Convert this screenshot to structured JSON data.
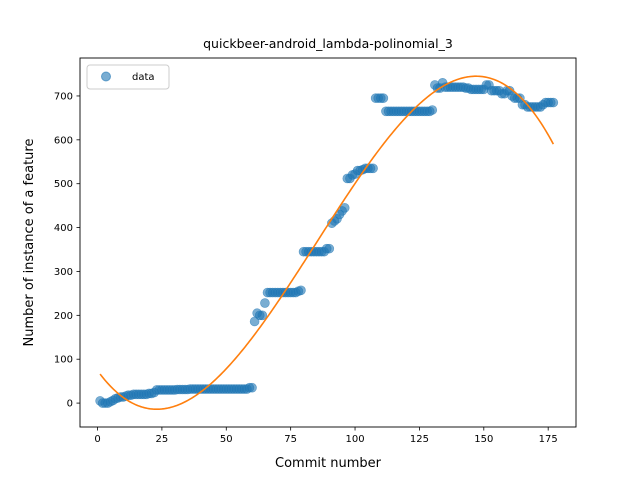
{
  "chart_data": {
    "type": "scatter",
    "title": "quickbeer-android_lambda-polinomial_3",
    "xlabel": "Commit number",
    "ylabel": "Number of instance of a feature",
    "xlim": [
      -6.8,
      185.8
    ],
    "ylim": [
      -54.5,
      786.5
    ],
    "xticks": [
      0,
      25,
      50,
      75,
      100,
      125,
      150,
      175
    ],
    "yticks": [
      0,
      100,
      200,
      300,
      400,
      500,
      600,
      700
    ],
    "grid": false,
    "legend": {
      "position": "top-left",
      "entries": [
        "data"
      ]
    },
    "colors": {
      "data": "#1f77b4",
      "fit": "#ff7f0e"
    },
    "series": [
      {
        "name": "data",
        "kind": "scatter",
        "points": [
          [
            1,
            5
          ],
          [
            2,
            0
          ],
          [
            3,
            0
          ],
          [
            4,
            0
          ],
          [
            5,
            3
          ],
          [
            6,
            6
          ],
          [
            7,
            10
          ],
          [
            8,
            12
          ],
          [
            9,
            14
          ],
          [
            10,
            14
          ],
          [
            11,
            16
          ],
          [
            12,
            18
          ],
          [
            13,
            18
          ],
          [
            14,
            20
          ],
          [
            15,
            20
          ],
          [
            16,
            20
          ],
          [
            17,
            20
          ],
          [
            18,
            20
          ],
          [
            19,
            20
          ],
          [
            20,
            22
          ],
          [
            21,
            22
          ],
          [
            22,
            24
          ],
          [
            23,
            30
          ],
          [
            24,
            30
          ],
          [
            25,
            30
          ],
          [
            26,
            30
          ],
          [
            27,
            30
          ],
          [
            28,
            30
          ],
          [
            29,
            30
          ],
          [
            30,
            30
          ],
          [
            31,
            31
          ],
          [
            32,
            31
          ],
          [
            33,
            31
          ],
          [
            34,
            31
          ],
          [
            35,
            31
          ],
          [
            36,
            32
          ],
          [
            37,
            32
          ],
          [
            38,
            32
          ],
          [
            39,
            32
          ],
          [
            40,
            32
          ],
          [
            41,
            32
          ],
          [
            42,
            32
          ],
          [
            43,
            32
          ],
          [
            44,
            32
          ],
          [
            45,
            32
          ],
          [
            46,
            32
          ],
          [
            47,
            32
          ],
          [
            48,
            32
          ],
          [
            49,
            32
          ],
          [
            50,
            32
          ],
          [
            51,
            32
          ],
          [
            52,
            32
          ],
          [
            53,
            32
          ],
          [
            54,
            32
          ],
          [
            55,
            32
          ],
          [
            56,
            32
          ],
          [
            57,
            32
          ],
          [
            58,
            32
          ],
          [
            59,
            35
          ],
          [
            60,
            35
          ],
          [
            61,
            186
          ],
          [
            62,
            205
          ],
          [
            63,
            200
          ],
          [
            64,
            200
          ],
          [
            65,
            228
          ],
          [
            66,
            252
          ],
          [
            67,
            252
          ],
          [
            68,
            252
          ],
          [
            69,
            252
          ],
          [
            70,
            252
          ],
          [
            71,
            252
          ],
          [
            72,
            252
          ],
          [
            73,
            252
          ],
          [
            74,
            252
          ],
          [
            75,
            252
          ],
          [
            76,
            252
          ],
          [
            77,
            252
          ],
          [
            78,
            255
          ],
          [
            79,
            257
          ],
          [
            80,
            345
          ],
          [
            81,
            345
          ],
          [
            82,
            345
          ],
          [
            83,
            345
          ],
          [
            84,
            345
          ],
          [
            85,
            345
          ],
          [
            86,
            345
          ],
          [
            87,
            345
          ],
          [
            88,
            345
          ],
          [
            89,
            352
          ],
          [
            90,
            352
          ],
          [
            91,
            410
          ],
          [
            92,
            415
          ],
          [
            93,
            420
          ],
          [
            94,
            430
          ],
          [
            95,
            438
          ],
          [
            96,
            445
          ],
          [
            97,
            512
          ],
          [
            98,
            512
          ],
          [
            99,
            520
          ],
          [
            100,
            522
          ],
          [
            101,
            530
          ],
          [
            102,
            530
          ],
          [
            103,
            532
          ],
          [
            104,
            535
          ],
          [
            105,
            535
          ],
          [
            106,
            535
          ],
          [
            107,
            535
          ],
          [
            108,
            695
          ],
          [
            109,
            695
          ],
          [
            110,
            695
          ],
          [
            111,
            695
          ],
          [
            112,
            665
          ],
          [
            113,
            665
          ],
          [
            114,
            665
          ],
          [
            115,
            665
          ],
          [
            116,
            665
          ],
          [
            117,
            665
          ],
          [
            118,
            665
          ],
          [
            119,
            665
          ],
          [
            120,
            665
          ],
          [
            121,
            665
          ],
          [
            122,
            665
          ],
          [
            123,
            665
          ],
          [
            124,
            665
          ],
          [
            125,
            665
          ],
          [
            126,
            665
          ],
          [
            127,
            665
          ],
          [
            128,
            665
          ],
          [
            129,
            665
          ],
          [
            130,
            668
          ],
          [
            131,
            725
          ],
          [
            132,
            718
          ],
          [
            133,
            718
          ],
          [
            134,
            730
          ],
          [
            135,
            720
          ],
          [
            136,
            720
          ],
          [
            137,
            720
          ],
          [
            138,
            720
          ],
          [
            139,
            720
          ],
          [
            140,
            720
          ],
          [
            141,
            720
          ],
          [
            142,
            720
          ],
          [
            143,
            718
          ],
          [
            144,
            718
          ],
          [
            145,
            715
          ],
          [
            146,
            715
          ],
          [
            147,
            715
          ],
          [
            148,
            715
          ],
          [
            149,
            715
          ],
          [
            150,
            715
          ],
          [
            151,
            725
          ],
          [
            152,
            725
          ],
          [
            153,
            712
          ],
          [
            154,
            712
          ],
          [
            155,
            712
          ],
          [
            156,
            712
          ],
          [
            157,
            705
          ],
          [
            158,
            705
          ],
          [
            159,
            712
          ],
          [
            160,
            712
          ],
          [
            161,
            700
          ],
          [
            162,
            695
          ],
          [
            163,
            695
          ],
          [
            164,
            695
          ],
          [
            165,
            680
          ],
          [
            166,
            680
          ],
          [
            167,
            675
          ],
          [
            168,
            675
          ],
          [
            169,
            675
          ],
          [
            170,
            675
          ],
          [
            171,
            675
          ],
          [
            172,
            675
          ],
          [
            173,
            680
          ],
          [
            174,
            685
          ],
          [
            175,
            685
          ],
          [
            176,
            685
          ],
          [
            177,
            685
          ]
        ]
      },
      {
        "kind": "line",
        "polynomial_degree": 3,
        "x_range": [
          1,
          177
        ],
        "y_start": 62,
        "y_min": -14,
        "x_at_min": 23,
        "y_max": 745,
        "x_at_max": 147,
        "y_end": 610
      }
    ]
  }
}
